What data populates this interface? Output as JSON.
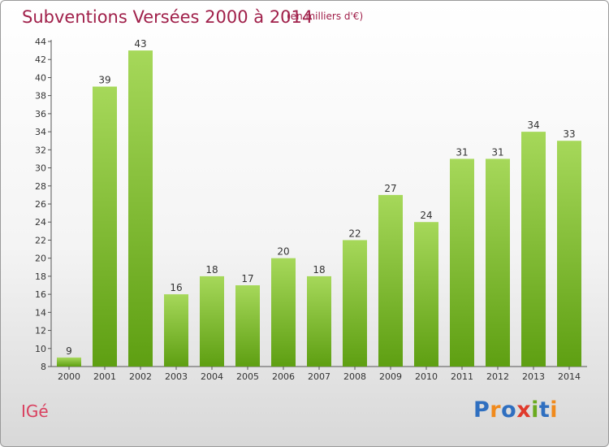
{
  "title": "Subventions Versées 2000 à 2014",
  "subtitle": "(en milliers d'€)",
  "commune": "IGé",
  "logo": {
    "text": "Proxiti",
    "letters": [
      {
        "ch": "P",
        "color": "#2f6fc0"
      },
      {
        "ch": "r",
        "color": "#f08a1c"
      },
      {
        "ch": "o",
        "color": "#2f6fc0"
      },
      {
        "ch": "x",
        "color": "#e03a2c"
      },
      {
        "ch": "i",
        "color": "#6aaa1e"
      },
      {
        "ch": "t",
        "color": "#2f6fc0"
      },
      {
        "ch": "i",
        "color": "#f08a1c"
      }
    ]
  },
  "colors": {
    "bar_light": "#a6d85a",
    "bar_dark": "#5e9f12",
    "title": "#a0204a"
  },
  "chart_data": {
    "type": "bar",
    "categories": [
      "2000",
      "2001",
      "2002",
      "2003",
      "2004",
      "2005",
      "2006",
      "2007",
      "2008",
      "2009",
      "2010",
      "2011",
      "2012",
      "2013",
      "2014"
    ],
    "values": [
      9,
      39,
      43,
      16,
      18,
      17,
      20,
      18,
      22,
      27,
      24,
      31,
      31,
      34,
      33
    ],
    "ylim": [
      8,
      44
    ],
    "yticks": [
      8,
      10,
      12,
      14,
      16,
      18,
      20,
      22,
      24,
      26,
      28,
      30,
      32,
      34,
      36,
      38,
      40,
      42,
      44
    ],
    "title": "Subventions Versées 2000 à 2014",
    "xlabel": "",
    "ylabel": "",
    "grid": false,
    "legend": "none"
  }
}
